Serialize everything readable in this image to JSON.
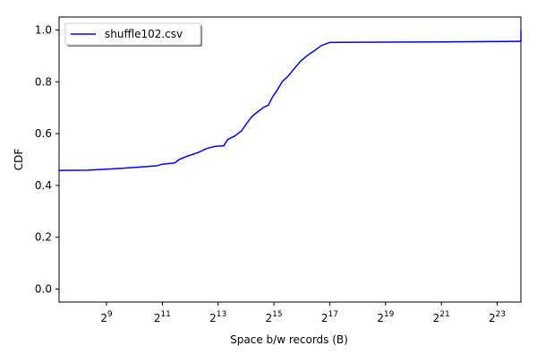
{
  "chart_data": {
    "type": "line",
    "xscale": "log2",
    "xlim_exponent": [
      7.3,
      23.85
    ],
    "ylim": [
      -0.05,
      1.05
    ],
    "xlabel": "Space b/w records (B)",
    "ylabel": "CDF",
    "x_ticks": [
      {
        "exponent": 9,
        "base": "2",
        "sup": "9"
      },
      {
        "exponent": 11,
        "base": "2",
        "sup": "11"
      },
      {
        "exponent": 13,
        "base": "2",
        "sup": "13"
      },
      {
        "exponent": 15,
        "base": "2",
        "sup": "15"
      },
      {
        "exponent": 17,
        "base": "2",
        "sup": "17"
      },
      {
        "exponent": 19,
        "base": "2",
        "sup": "19"
      },
      {
        "exponent": 21,
        "base": "2",
        "sup": "21"
      },
      {
        "exponent": 23,
        "base": "2",
        "sup": "23"
      }
    ],
    "y_ticks": [
      "0.0",
      "0.2",
      "0.4",
      "0.6",
      "0.8",
      "1.0"
    ],
    "y_tick_values": [
      0.0,
      0.2,
      0.4,
      0.6,
      0.8,
      1.0
    ],
    "grid": false,
    "legend_position": "top-left",
    "series": [
      {
        "name": "shuffle102.csv",
        "color": "#0000ff",
        "points_log2x_y": [
          [
            7.3,
            0.458
          ],
          [
            8.3,
            0.459
          ],
          [
            9.0,
            0.463
          ],
          [
            9.5,
            0.466
          ],
          [
            10.3,
            0.472
          ],
          [
            10.8,
            0.476
          ],
          [
            11.0,
            0.482
          ],
          [
            11.45,
            0.487
          ],
          [
            11.6,
            0.5
          ],
          [
            11.9,
            0.513
          ],
          [
            12.3,
            0.528
          ],
          [
            12.6,
            0.543
          ],
          [
            12.9,
            0.551
          ],
          [
            13.2,
            0.553
          ],
          [
            13.35,
            0.578
          ],
          [
            13.6,
            0.591
          ],
          [
            13.85,
            0.612
          ],
          [
            14.0,
            0.636
          ],
          [
            14.2,
            0.665
          ],
          [
            14.4,
            0.683
          ],
          [
            14.65,
            0.703
          ],
          [
            14.8,
            0.71
          ],
          [
            14.95,
            0.742
          ],
          [
            15.1,
            0.765
          ],
          [
            15.3,
            0.801
          ],
          [
            15.5,
            0.821
          ],
          [
            15.7,
            0.847
          ],
          [
            15.95,
            0.879
          ],
          [
            16.2,
            0.902
          ],
          [
            16.45,
            0.92
          ],
          [
            16.7,
            0.94
          ],
          [
            17.0,
            0.952
          ],
          [
            19.0,
            0.953
          ],
          [
            21.0,
            0.954
          ],
          [
            23.8,
            0.956
          ],
          [
            23.85,
            0.956
          ],
          [
            23.85,
            1.0
          ]
        ]
      }
    ]
  }
}
